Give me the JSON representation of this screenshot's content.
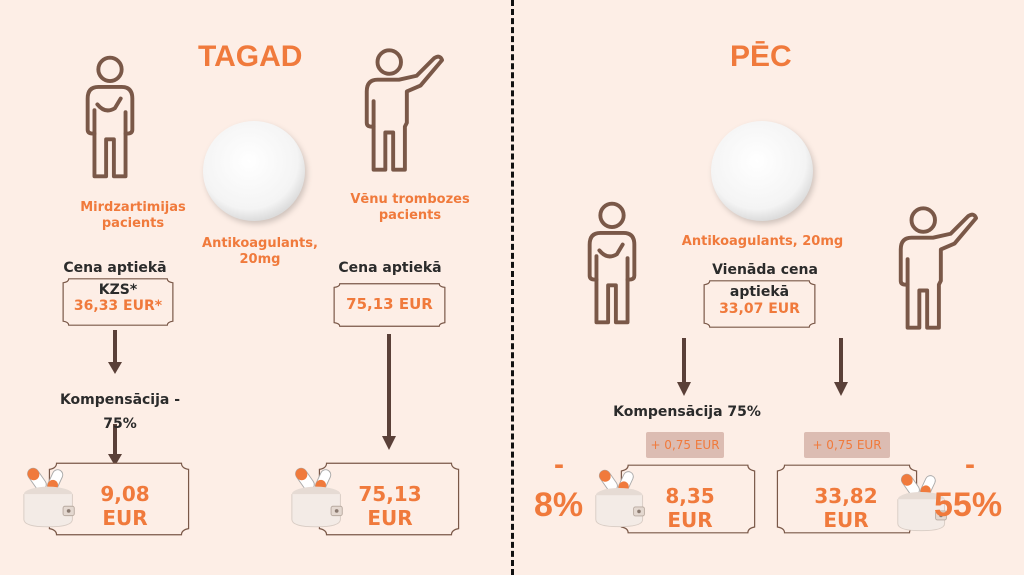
{
  "left": {
    "title": "TAGAD",
    "patient_a": "Mirdzartimijas pacients",
    "patient_b": "Vēnu trombozes pacients",
    "drug": "Antikoagulants, 20mg",
    "a_price_label": "Cena aptiekā",
    "a_price_kzs": "KZS*",
    "a_price_value": "36,33 EUR*",
    "a_comp": "Kompensācija - 75%",
    "a_result_num": "9,08",
    "a_result_unit": "EUR",
    "b_price_label": "Cena aptiekā",
    "b_price_value": "75,13 EUR",
    "b_result_num": "75,13",
    "b_result_unit": "EUR"
  },
  "right": {
    "title": "PĒC",
    "drug": "Antikoagulants, 20mg",
    "same_price_1": "Vienāda cena",
    "same_price_2": "aptiekā",
    "same_price_value": "33,07 EUR",
    "comp": "Kompensācija 75%",
    "plus_a": "+ 0,75 EUR",
    "plus_b": "+ 0,75 EUR",
    "a_result_num": "8,35",
    "a_result_unit": "EUR",
    "b_result_num": "33,82",
    "b_result_unit": "EUR",
    "pct_a_sign": "-",
    "pct_a": "8%",
    "pct_b_sign": "-",
    "pct_b": "55%"
  },
  "colors": {
    "accent": "#f07a3c",
    "figure": "#7a5848",
    "arrow": "#5a4038"
  }
}
